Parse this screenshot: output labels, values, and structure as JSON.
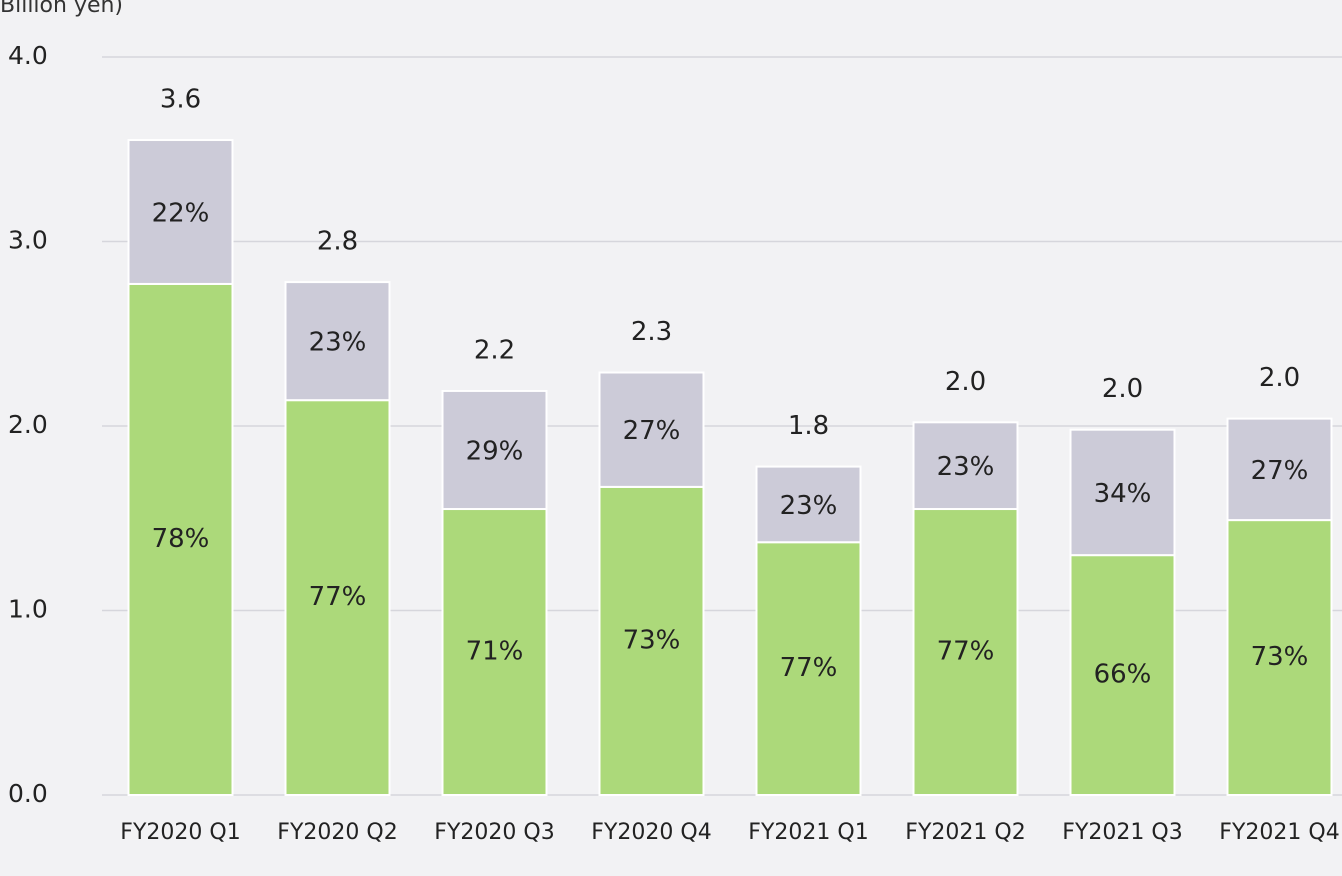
{
  "chart_data": {
    "type": "stacked_bar",
    "y_label": "Billion yen)",
    "categories": [
      "FY2020 Q1",
      "FY2020 Q2",
      "FY2020 Q3",
      "FY2020 Q4",
      "FY2021 Q1",
      "FY2021 Q2",
      "FY2021 Q3",
      "FY2021 Q4"
    ],
    "series": [
      {
        "color": "#acd97a",
        "values": [
          2.77,
          2.14,
          1.55,
          1.67,
          1.37,
          1.55,
          1.3,
          1.49
        ],
        "value_labels": [
          "78%",
          "77%",
          "71%",
          "73%",
          "77%",
          "77%",
          "66%",
          "73%"
        ]
      },
      {
        "color": "#cccbd8",
        "values": [
          0.78,
          0.64,
          0.64,
          0.62,
          0.41,
          0.47,
          0.68,
          0.55
        ],
        "value_labels": [
          "22%",
          "23%",
          "29%",
          "27%",
          "23%",
          "23%",
          "34%",
          "27%"
        ]
      }
    ],
    "total_labels": [
      "3.6",
      "2.8",
      "2.2",
      "2.3",
      "1.8",
      "2.0",
      "2.0",
      "2.0"
    ],
    "ylim": [
      0,
      4
    ],
    "yticks": [
      {
        "value": 0,
        "label": "0.0"
      },
      {
        "value": 1,
        "label": "1.0"
      },
      {
        "value": 2,
        "label": "2.0"
      },
      {
        "value": 3,
        "label": "3.0"
      },
      {
        "value": 4,
        "label": "4.0"
      }
    ],
    "grid": true
  }
}
